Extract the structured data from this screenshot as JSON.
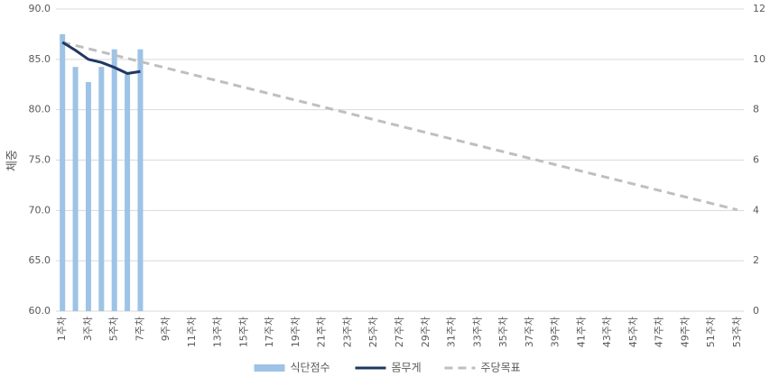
{
  "chart_data": {
    "type": "combo",
    "y_label": "체중",
    "categories": [
      "1주차",
      null,
      "3주차",
      null,
      "5주차",
      null,
      "7주차",
      null,
      "9주차",
      null,
      "11주차",
      null,
      "13주차",
      null,
      "15주차",
      null,
      "17주차",
      null,
      "19주차",
      null,
      "21주차",
      null,
      "23주차",
      null,
      "25주차",
      null,
      "27주차",
      null,
      "29주차",
      null,
      "31주차",
      null,
      "33주차",
      null,
      "35주차",
      null,
      "37주차",
      null,
      "39주차",
      null,
      "41주차",
      null,
      "43주차",
      null,
      "45주차",
      null,
      "47주차",
      null,
      "49주차",
      null,
      "51주차",
      null,
      "53주차"
    ],
    "series": [
      {
        "name": "식단점수",
        "type": "bar",
        "axis": "y2",
        "color": "#9dc3e6",
        "values": [
          11,
          9.7,
          9.1,
          9.7,
          10.4,
          9.4,
          10.4,
          null,
          null,
          null,
          null,
          null,
          null,
          null,
          null,
          null,
          null,
          null,
          null,
          null,
          null,
          null,
          null,
          null,
          null,
          null,
          null,
          null,
          null,
          null,
          null,
          null,
          null,
          null,
          null,
          null,
          null,
          null,
          null,
          null,
          null,
          null,
          null,
          null,
          null,
          null,
          null,
          null,
          null,
          null,
          null,
          null,
          null
        ]
      },
      {
        "name": "몸무게",
        "type": "line",
        "color": "#1f3864",
        "values": [
          86.7,
          85.9,
          85.0,
          84.7,
          84.2,
          83.6,
          83.8,
          null,
          null,
          null,
          null,
          null,
          null,
          null,
          null,
          null,
          null,
          null,
          null,
          null,
          null,
          null,
          null,
          null,
          null,
          null,
          null,
          null,
          null,
          null,
          null,
          null,
          null,
          null,
          null,
          null,
          null,
          null,
          null,
          null,
          null,
          null,
          null,
          null,
          null,
          null,
          null,
          null,
          null,
          null,
          null,
          null,
          null
        ]
      },
      {
        "name": "주당목표",
        "type": "dashed-line",
        "color": "#bfbfbf",
        "values": [
          86.7,
          86.38,
          86.06,
          85.74,
          85.42,
          85.1,
          84.78,
          84.46,
          84.14,
          83.82,
          83.5,
          83.18,
          82.86,
          82.54,
          82.22,
          81.9,
          81.58,
          81.26,
          80.94,
          80.62,
          80.3,
          79.98,
          79.66,
          79.34,
          79.02,
          78.7,
          78.38,
          78.06,
          77.74,
          77.42,
          77.1,
          76.78,
          76.46,
          76.14,
          75.82,
          75.5,
          75.18,
          74.86,
          74.54,
          74.22,
          73.9,
          73.58,
          73.26,
          72.94,
          72.62,
          72.3,
          71.98,
          71.66,
          71.34,
          71.02,
          70.7,
          70.38,
          70.06
        ]
      }
    ],
    "ylim": [
      60,
      90
    ],
    "yticks": [
      {
        "value": 60,
        "label": "60.0"
      },
      {
        "value": 65,
        "label": "65.0"
      },
      {
        "value": 70,
        "label": "70.0"
      },
      {
        "value": 75,
        "label": "75.0"
      },
      {
        "value": 80,
        "label": "80.0"
      },
      {
        "value": 85,
        "label": "85.0"
      },
      {
        "value": 90,
        "label": "90.0"
      }
    ],
    "y2lim": [
      0,
      12
    ],
    "y2ticks": [
      0,
      2,
      4,
      6,
      8,
      10,
      12
    ],
    "grid": true,
    "legend": "bottom"
  }
}
